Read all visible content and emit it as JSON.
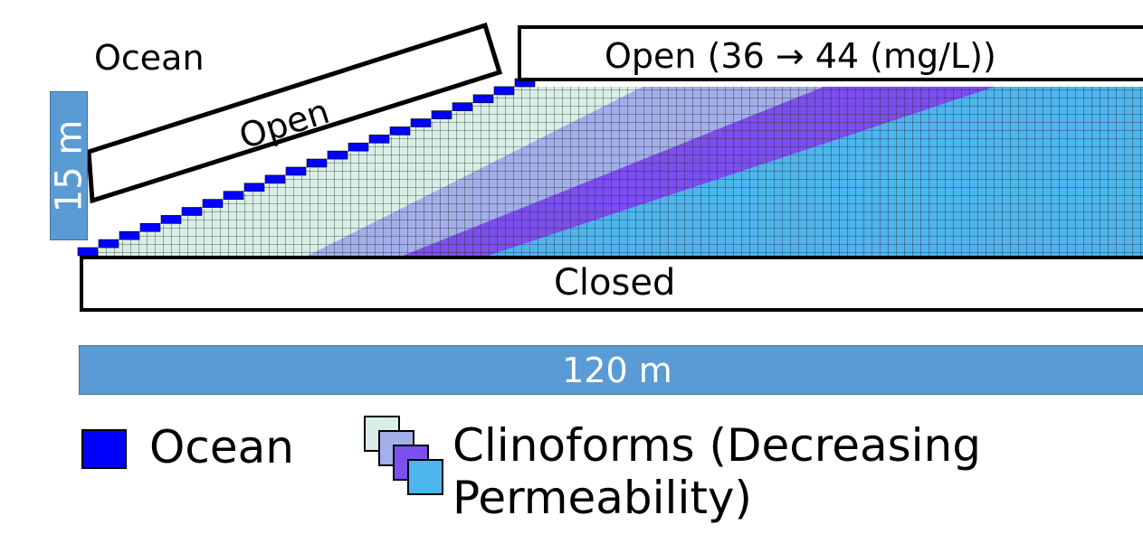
{
  "labels": {
    "ocean_top": "Ocean",
    "open_slope": "Open",
    "open_top": "Open (36 → 44 (mg/L))",
    "closed": "Closed",
    "depth": "15 m",
    "length": "120 m"
  },
  "legend": {
    "ocean": "Ocean",
    "clinoforms_line1": "Clinoforms (Decreasing",
    "clinoforms_line2": "Permeability)"
  },
  "colors": {
    "ocean": "#0000ff",
    "clinoform_1": "#d9efe6",
    "clinoform_2": "#a3aeea",
    "clinoform_3": "#7b4ff0",
    "clinoform_4": "#4db6ef",
    "scale_bar": "#5b9bd5"
  }
}
